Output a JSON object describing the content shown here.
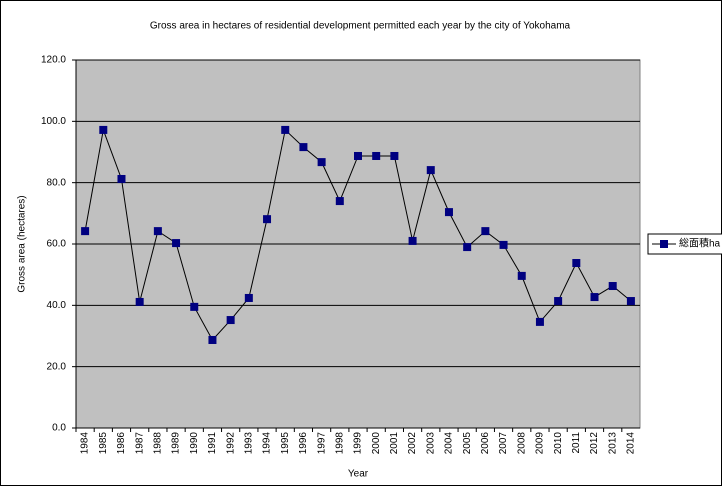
{
  "chart_data": {
    "type": "line",
    "title": "Gross area in hectares of residential development permitted each year by the city of Yokohama",
    "x_label": "Year",
    "y_label": "Gross area (hectares)",
    "categories": [
      "1984",
      "1985",
      "1986",
      "1987",
      "1988",
      "1989",
      "1990",
      "1991",
      "1992",
      "1993",
      "1994",
      "1995",
      "1996",
      "1997",
      "1998",
      "1999",
      "2000",
      "2001",
      "2002",
      "2003",
      "2004",
      "2005",
      "2006",
      "2007",
      "2008",
      "2009",
      "2010",
      "2011",
      "2012",
      "2013",
      "2014"
    ],
    "series": [
      {
        "name": "総面積ha",
        "color": "#000080",
        "values": [
          64.2,
          97.2,
          81.2,
          41.1,
          64.2,
          60.3,
          39.5,
          28.7,
          35.2,
          42.4,
          68.1,
          97.2,
          91.6,
          86.7,
          74.0,
          88.7,
          88.7,
          88.7,
          61.0,
          84.1,
          70.4,
          59.0,
          64.2,
          59.7,
          49.6,
          34.6,
          41.4,
          53.8,
          42.7,
          46.3,
          41.4
        ]
      }
    ],
    "ylim": [
      0,
      120
    ],
    "yticks": [
      {
        "value": 0,
        "label": "0.0"
      },
      {
        "value": 20,
        "label": "20.0"
      },
      {
        "value": 40,
        "label": "40.0"
      },
      {
        "value": 60,
        "label": "60.0"
      },
      {
        "value": 80,
        "label": "80.0"
      },
      {
        "value": 100,
        "label": "100.0"
      },
      {
        "value": 120,
        "label": "120.0"
      }
    ],
    "grid": true,
    "legend": "right",
    "plot_background": "#c0c0c0"
  }
}
